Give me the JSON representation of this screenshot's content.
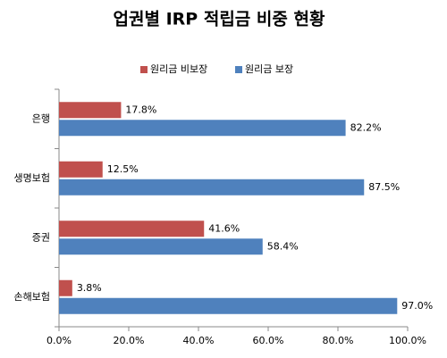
{
  "chart_data": {
    "type": "hbar",
    "title": "업권별 IRP 적립금 비중 현황",
    "categories": [
      "은행",
      "생명보험",
      "증권",
      "손해보험"
    ],
    "series": [
      {
        "name": "원리금 비보장",
        "color": "#c0504d",
        "values": [
          17.8,
          12.5,
          41.6,
          3.8
        ],
        "value_labels": [
          "17.8%",
          "12.5%",
          "41.6%",
          "3.8%"
        ]
      },
      {
        "name": "원리금 보장",
        "color": "#4f81bd",
        "values": [
          82.2,
          87.5,
          58.4,
          97.0
        ],
        "value_labels": [
          "82.2%",
          "87.5%",
          "58.4%",
          "97.0%"
        ]
      }
    ],
    "xlim": [
      0,
      100
    ],
    "xticks": [
      {
        "value": 0,
        "label": "0.0%"
      },
      {
        "value": 20,
        "label": "20.0%"
      },
      {
        "value": 40,
        "label": "40.0%"
      },
      {
        "value": 60,
        "label": "60.0%"
      },
      {
        "value": 80,
        "label": "80.0%"
      },
      {
        "value": 100,
        "label": "100.0%"
      }
    ],
    "legend": "top"
  }
}
